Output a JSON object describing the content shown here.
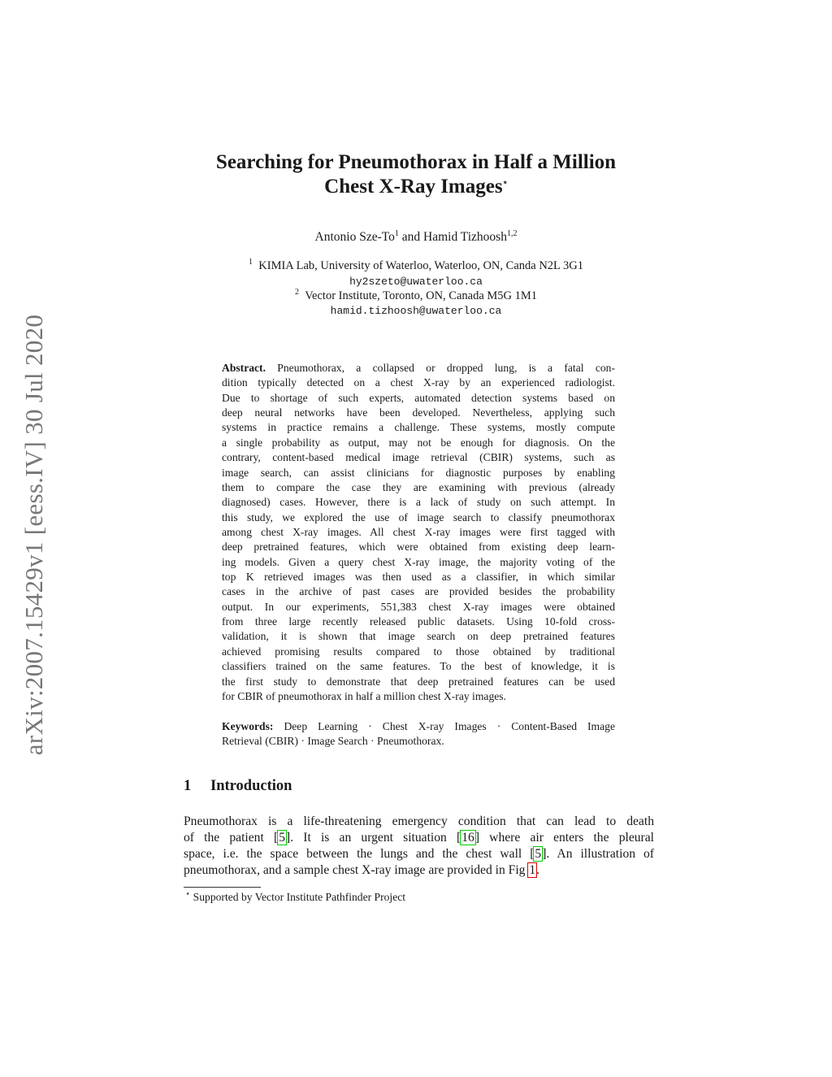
{
  "sidebar": "arXiv:2007.15429v1  [eess.IV]  30 Jul 2020",
  "title": {
    "line1": "Searching for Pneumothorax in Half a Million",
    "line2": "Chest X-Ray Images",
    "star": "⋆"
  },
  "authors": {
    "a1": "Antonio Sze-To",
    "a1_sup": "1",
    "and": " and ",
    "a2": "Hamid Tizhoosh",
    "a2_sup": "1,2"
  },
  "affiliations": [
    {
      "sup": "1",
      "text": "KIMIA Lab, University of Waterloo, Waterloo, ON, Canda N2L 3G1",
      "email": "hy2szeto@uwaterloo.ca"
    },
    {
      "sup": "2",
      "text": "Vector Institute, Toronto, ON, Canada M5G 1M1",
      "email": "hamid.tizhoosh@uwaterloo.ca"
    }
  ],
  "abstract": {
    "label": "Abstract.",
    "first": "Pneumothorax, a collapsed or dropped lung, is a fatal con-",
    "lines": [
      "dition typically detected on a chest X-ray by an experienced radiologist.",
      "Due to shortage of such experts, automated detection systems based on",
      "deep neural networks have been developed. Nevertheless, applying such",
      "systems in practice remains a challenge. These systems, mostly compute",
      "a single probability as output, may not be enough for diagnosis. On the",
      "contrary, content-based medical image retrieval (CBIR) systems, such as",
      "image search, can assist clinicians for diagnostic purposes by enabling",
      "them to compare the case they are examining with previous (already",
      "diagnosed) cases. However, there is a lack of study on such attempt. In",
      "this study, we explored the use of image search to classify pneumothorax",
      "among chest X-ray images. All chest X-ray images were first tagged with",
      "deep pretrained features, which were obtained from existing deep learn-",
      "ing models. Given a query chest X-ray image, the majority voting of the",
      "top K retrieved images was then used as a classifier, in which similar",
      "cases in the archive of past cases are provided besides the probability",
      "output. In our experiments, 551,383 chest X-ray images were obtained",
      "from three large recently released public datasets. Using 10-fold cross-",
      "validation, it is shown that image search on deep pretrained features",
      "achieved promising results compared to those obtained by traditional",
      "classifiers trained on the same features. To the best of knowledge, it is",
      "the first study to demonstrate that deep pretrained features can be used",
      "for CBIR of pneumothorax in half a million chest X-ray images."
    ]
  },
  "keywords": {
    "label": "Keywords:",
    "first": "Deep Learning · Chest X-ray Images · Content-Based Image",
    "second": "Retrieval (CBIR) · Image Search · Pneumothorax."
  },
  "section": {
    "number": "1",
    "title": "Introduction"
  },
  "intro": {
    "l1": "Pneumothorax is a life-threatening emergency condition that can lead to death",
    "l2a": "of the patient ",
    "c1": "5",
    "l2b": ". It is an urgent situation ",
    "c2": "16",
    "l2c": " where air enters the pleural",
    "l3a": "space, i.e. the space between the lungs and the chest wall ",
    "c3": "5",
    "l3b": ". An illustration of",
    "l4a": "pneumothorax, and a sample chest X-ray image are provided in Fig ",
    "c4": "1",
    "l4b": "."
  },
  "footnote": {
    "star": "⋆",
    "text": "Supported by Vector Institute Pathfinder Project"
  },
  "colors": {
    "citation_box": "#00d000",
    "figure_ref_box": "#e00000",
    "sidebar_text": "#777777"
  }
}
